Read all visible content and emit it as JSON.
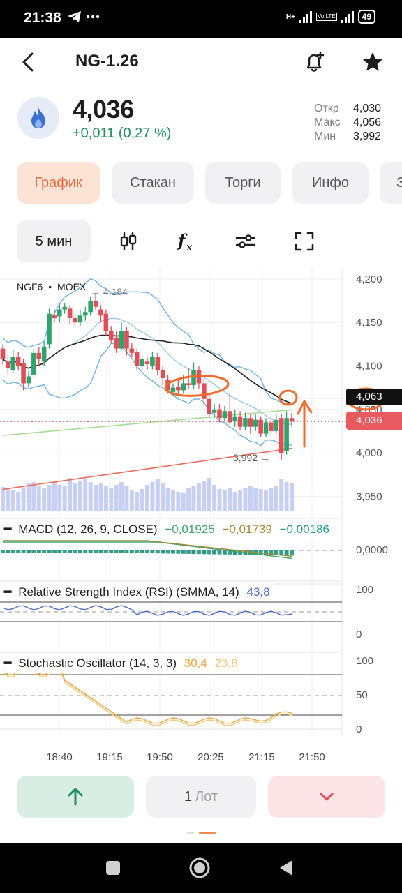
{
  "status_bar": {
    "time": "21:38",
    "left_icons": [
      "telegram-icon",
      "more-dots-icon"
    ],
    "network": "H+",
    "volte": "Vo LTE",
    "battery": "49"
  },
  "header": {
    "title": "NG-1.26",
    "icons": [
      "back-arrow-icon",
      "bell-plus-icon",
      "star-icon"
    ]
  },
  "quote": {
    "icon": "flame-icon",
    "price": "4,036",
    "change": "+0,011 (0,27 %)",
    "change_color": "#1f8f5f",
    "stats": [
      {
        "label": "Откр",
        "value": "4,030"
      },
      {
        "label": "Макс",
        "value": "4,056"
      },
      {
        "label": "Мин",
        "value": "3,992"
      }
    ]
  },
  "tabs": [
    {
      "label": "График",
      "active": true
    },
    {
      "label": "Стакан",
      "active": false
    },
    {
      "label": "Торги",
      "active": false
    },
    {
      "label": "Инфо",
      "active": false
    },
    {
      "label": "З",
      "active": false
    }
  ],
  "toolbar": {
    "interval": "5 мин",
    "icons": [
      "candlestick-icon",
      "function-icon",
      "settings-sliders-icon",
      "fullscreen-icon"
    ]
  },
  "chart_data": {
    "type": "candlestick",
    "symbol_label": "NGF6",
    "exchange_label": "MOEX",
    "high_annotation": "4,184",
    "low_annotation": "3,992",
    "last_price_label": "4,036",
    "crosshair_label": "4,063",
    "price_axis": {
      "ticks": [
        "4,200",
        "4,150",
        "4,100",
        "4,050",
        "4,000",
        "3,950"
      ],
      "range": [
        3.935,
        4.212
      ]
    },
    "time_axis": {
      "ticks": [
        "18:40",
        "19:15",
        "19:50",
        "20:25",
        "21:15",
        "21:50"
      ]
    },
    "candles": [
      [
        4.12,
        4.108,
        4.125,
        4.102
      ],
      [
        4.105,
        4.098,
        4.112,
        4.09
      ],
      [
        4.095,
        4.11,
        4.118,
        4.092
      ],
      [
        4.11,
        4.1,
        4.116,
        4.095
      ],
      [
        4.103,
        4.08,
        4.108,
        4.072
      ],
      [
        4.08,
        4.088,
        4.094,
        4.075
      ],
      [
        4.09,
        4.115,
        4.12,
        4.086
      ],
      [
        4.115,
        4.108,
        4.122,
        4.1
      ],
      [
        4.105,
        4.122,
        4.128,
        4.1
      ],
      [
        4.125,
        4.16,
        4.166,
        4.12
      ],
      [
        4.158,
        4.155,
        4.165,
        4.15
      ],
      [
        4.157,
        4.165,
        4.172,
        4.15
      ],
      [
        4.165,
        4.168,
        4.172,
        4.16
      ],
      [
        4.166,
        4.155,
        4.17,
        4.148
      ],
      [
        4.155,
        4.15,
        4.16,
        4.146
      ],
      [
        4.15,
        4.158,
        4.165,
        4.146
      ],
      [
        4.158,
        4.162,
        4.168,
        4.152
      ],
      [
        4.162,
        4.175,
        4.18,
        4.158
      ],
      [
        4.175,
        4.168,
        4.184,
        4.164
      ],
      [
        4.165,
        4.158,
        4.17,
        4.15
      ],
      [
        4.16,
        4.14,
        4.165,
        4.135
      ],
      [
        4.14,
        4.13,
        4.146,
        4.126
      ],
      [
        4.132,
        4.12,
        4.14,
        4.115
      ],
      [
        4.12,
        4.14,
        4.15,
        4.118
      ],
      [
        4.14,
        4.12,
        4.145,
        4.112
      ],
      [
        4.12,
        4.115,
        4.126,
        4.11
      ],
      [
        4.116,
        4.1,
        4.12,
        4.095
      ],
      [
        4.1,
        4.108,
        4.112,
        4.095
      ],
      [
        4.105,
        4.102,
        4.11,
        4.095
      ],
      [
        4.1,
        4.11,
        4.116,
        4.096
      ],
      [
        4.11,
        4.095,
        4.115,
        4.09
      ],
      [
        4.095,
        4.086,
        4.1,
        4.078
      ],
      [
        4.084,
        4.072,
        4.09,
        4.068
      ],
      [
        4.07,
        4.075,
        4.08,
        4.066
      ],
      [
        4.076,
        4.072,
        4.084,
        4.068
      ],
      [
        4.072,
        4.08,
        4.09,
        4.068
      ],
      [
        4.08,
        4.078,
        4.098,
        4.074
      ],
      [
        4.078,
        4.095,
        4.104,
        4.074
      ],
      [
        4.095,
        4.08,
        4.1,
        4.074
      ],
      [
        4.08,
        4.062,
        4.086,
        4.055
      ],
      [
        4.062,
        4.045,
        4.066,
        4.04
      ],
      [
        4.046,
        4.05,
        4.056,
        4.04
      ],
      [
        4.05,
        4.04,
        4.056,
        4.035
      ],
      [
        4.04,
        4.048,
        4.054,
        4.036
      ],
      [
        4.048,
        4.035,
        4.068,
        4.032
      ],
      [
        4.036,
        4.042,
        4.05,
        4.03
      ],
      [
        4.042,
        4.03,
        4.048,
        4.026
      ],
      [
        4.03,
        4.04,
        4.046,
        4.026
      ],
      [
        4.04,
        4.03,
        4.045,
        4.022
      ],
      [
        4.03,
        4.038,
        4.044,
        4.025
      ],
      [
        4.038,
        4.022,
        4.042,
        4.018
      ],
      [
        4.022,
        4.035,
        4.04,
        4.018
      ],
      [
        4.035,
        4.025,
        4.042,
        4.02
      ],
      [
        4.025,
        4.038,
        4.045,
        4.022
      ],
      [
        4.04,
        4.0,
        4.045,
        3.992
      ],
      [
        4.002,
        4.04,
        4.048,
        3.998
      ],
      [
        4.04,
        4.036,
        4.046,
        4.03
      ]
    ],
    "volume": [
      0.35,
      0.32,
      0.3,
      0.28,
      0.34,
      0.4,
      0.42,
      0.36,
      0.34,
      0.38,
      0.42,
      0.38,
      0.36,
      0.48,
      0.4,
      0.44,
      0.46,
      0.42,
      0.38,
      0.4,
      0.36,
      0.34,
      0.38,
      0.42,
      0.36,
      0.3,
      0.28,
      0.32,
      0.38,
      0.42,
      0.46,
      0.4,
      0.34,
      0.3,
      0.28,
      0.26,
      0.34,
      0.36,
      0.4,
      0.44,
      0.48,
      0.38,
      0.32,
      0.3,
      0.34,
      0.28,
      0.3,
      0.34,
      0.36,
      0.34,
      0.32,
      0.3,
      0.34,
      0.36,
      0.46,
      0.42,
      0.4
    ],
    "macd": {
      "label": "MACD (12, 26, 9, CLOSE)",
      "values": [
        "−0,01925",
        "−0,01739",
        "−0,00186"
      ],
      "colors": [
        "#3fa36a",
        "#a08a3a",
        "#2b9b88"
      ],
      "axis_label": "0,0000"
    },
    "rsi": {
      "label": "Relative Strength Index (RSI) (SMMA, 14)",
      "value": "43,8",
      "value_color": "#4b6cc7",
      "axis_labels": [
        "100",
        "0"
      ]
    },
    "stochastic": {
      "label": "Stochastic Oscillator (14, 3, 3)",
      "values": [
        "30,4",
        "23,8"
      ],
      "colors": [
        "#f0a53b",
        "#f3c97a"
      ],
      "axis_labels": [
        "100",
        "50",
        "0"
      ]
    },
    "colors": {
      "up": "#2fa36b",
      "down": "#e04e58",
      "volume": "#c7cff2",
      "bollinger": "#6cb3e8",
      "ma_black": "#222",
      "ma_green": "#a6dc93",
      "ma_red": "#ef6a5a",
      "annotation": "#f26a2b",
      "last_price_bg": "#e85a5f"
    }
  },
  "bottom_actions": {
    "buy_icon": "arrow-up-icon",
    "lot_number": "1",
    "lot_unit": "Лот",
    "sell_icon": "chevron-down-icon"
  },
  "nav_bar": {
    "icons": [
      "recent-apps-icon",
      "home-icon",
      "back-triangle-icon"
    ]
  }
}
